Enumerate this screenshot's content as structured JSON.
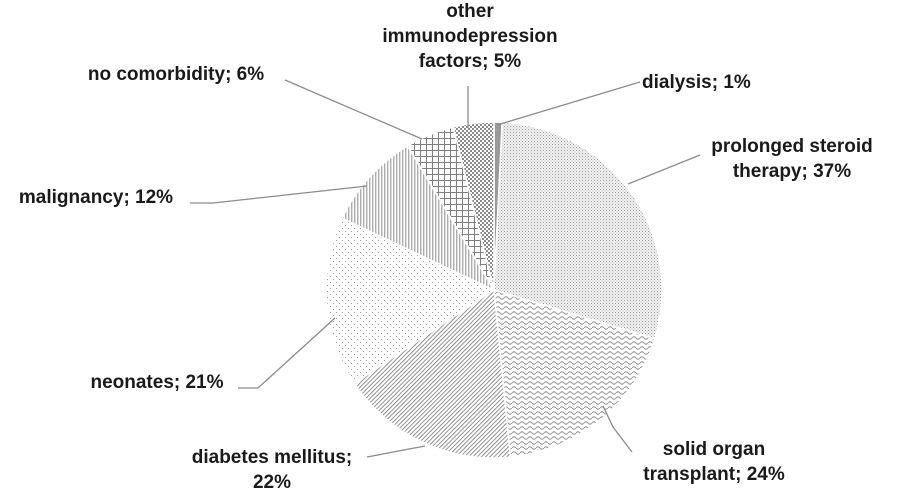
{
  "chart_data": {
    "type": "pie",
    "title": "",
    "slices": [
      {
        "label_lines": [
          "dialysis;  1%"
        ],
        "value": 1,
        "pattern": "solid"
      },
      {
        "label_lines": [
          "prolonged steroid",
          "therapy;  37%"
        ],
        "value": 37,
        "pattern": "dots-fine"
      },
      {
        "label_lines": [
          "solid organ",
          "transplant;  24%"
        ],
        "value": 24,
        "pattern": "waves"
      },
      {
        "label_lines": [
          "diabetes mellitus;",
          "22%"
        ],
        "value": 22,
        "pattern": "diagonal-lines"
      },
      {
        "label_lines": [
          "neonates;  21%"
        ],
        "value": 21,
        "pattern": "dots-sparse"
      },
      {
        "label_lines": [
          "malignancy;  12%"
        ],
        "value": 12,
        "pattern": "vertical-lines"
      },
      {
        "label_lines": [
          "no comorbidity;  6%"
        ],
        "value": 6,
        "pattern": "grid"
      },
      {
        "label_lines": [
          "other",
          "immunodepression",
          "factors;  5%"
        ],
        "value": 5,
        "pattern": "checker"
      }
    ]
  }
}
